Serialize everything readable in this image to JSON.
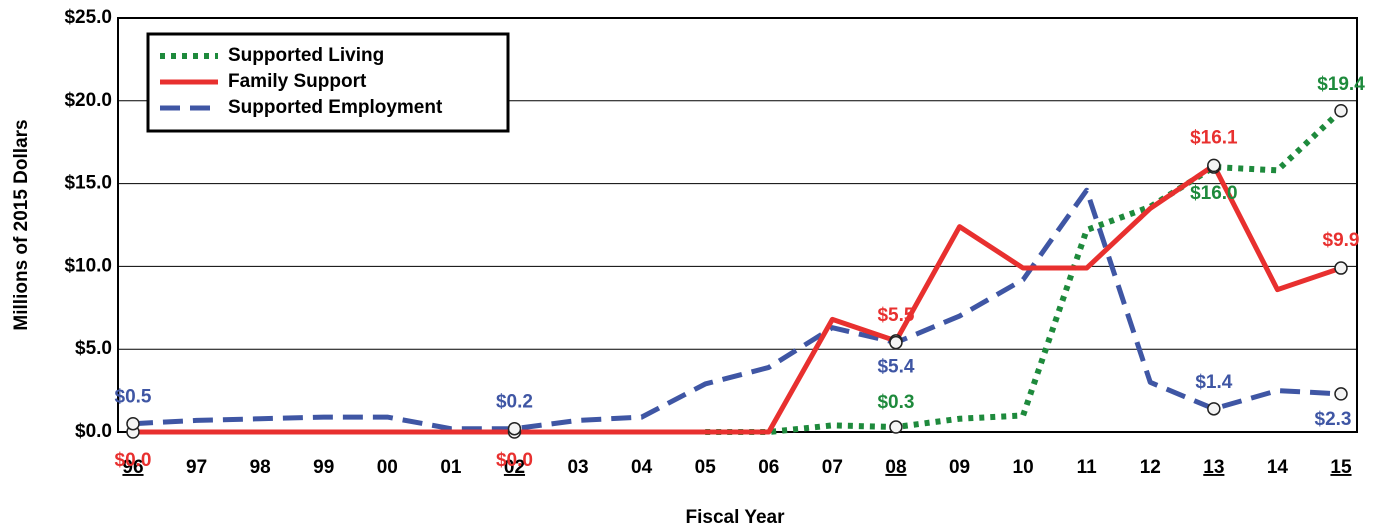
{
  "chart_data": {
    "type": "line",
    "x_label": "Fiscal Year",
    "y_label": "Millions of 2015 Dollars",
    "categories": [
      "96",
      "97",
      "98",
      "99",
      "00",
      "01",
      "02",
      "03",
      "04",
      "05",
      "06",
      "07",
      "08",
      "09",
      "10",
      "11",
      "12",
      "13",
      "14",
      "15"
    ],
    "ylim": [
      0,
      25
    ],
    "yticks": [
      {
        "value": 0,
        "label": "$0.0"
      },
      {
        "value": 5,
        "label": "$5.0"
      },
      {
        "value": 10,
        "label": "$10.0"
      },
      {
        "value": 15,
        "label": "$15.0"
      },
      {
        "value": 20,
        "label": "$20.0"
      },
      {
        "value": 25,
        "label": "$25.0"
      }
    ],
    "grid": true,
    "legend": "upper left",
    "series": [
      {
        "name": "Supported Living",
        "color": "#1e8a3c",
        "dash": "dotted",
        "values": [
          null,
          null,
          null,
          null,
          null,
          null,
          null,
          null,
          null,
          0,
          0,
          0.4,
          0.3,
          0.8,
          1.0,
          12.2,
          13.6,
          16.0,
          15.8,
          19.4
        ],
        "value_labels": [
          null,
          null,
          null,
          null,
          null,
          null,
          null,
          null,
          null,
          null,
          null,
          null,
          "$0.3",
          null,
          null,
          null,
          null,
          "$16.0",
          null,
          "$19.4"
        ]
      },
      {
        "name": "Family Support",
        "color": "#e8302f",
        "dash": "solid",
        "values": [
          0,
          0,
          0,
          0,
          0,
          0,
          0,
          0,
          0,
          0,
          0,
          6.8,
          5.5,
          12.4,
          9.9,
          9.9,
          13.5,
          16.1,
          8.6,
          9.9
        ],
        "value_labels": [
          "$0.0",
          null,
          null,
          null,
          null,
          null,
          "$0.0",
          null,
          null,
          null,
          null,
          null,
          "$5.5",
          null,
          null,
          null,
          null,
          "$16.1",
          null,
          "$9.9"
        ]
      },
      {
        "name": "Supported Employment",
        "color": "#3f56a4",
        "dash": "dashed",
        "values": [
          0.5,
          0.7,
          0.8,
          0.9,
          0.9,
          0.2,
          0.2,
          0.7,
          0.9,
          2.9,
          3.9,
          6.3,
          5.4,
          7.0,
          9.2,
          14.6,
          3.0,
          1.4,
          2.5,
          2.3
        ],
        "value_labels": [
          "$0.5",
          null,
          null,
          null,
          null,
          null,
          "$0.2",
          null,
          null,
          null,
          null,
          null,
          "$5.4",
          null,
          null,
          null,
          null,
          "$1.4",
          null,
          "$2.3"
        ]
      }
    ]
  }
}
